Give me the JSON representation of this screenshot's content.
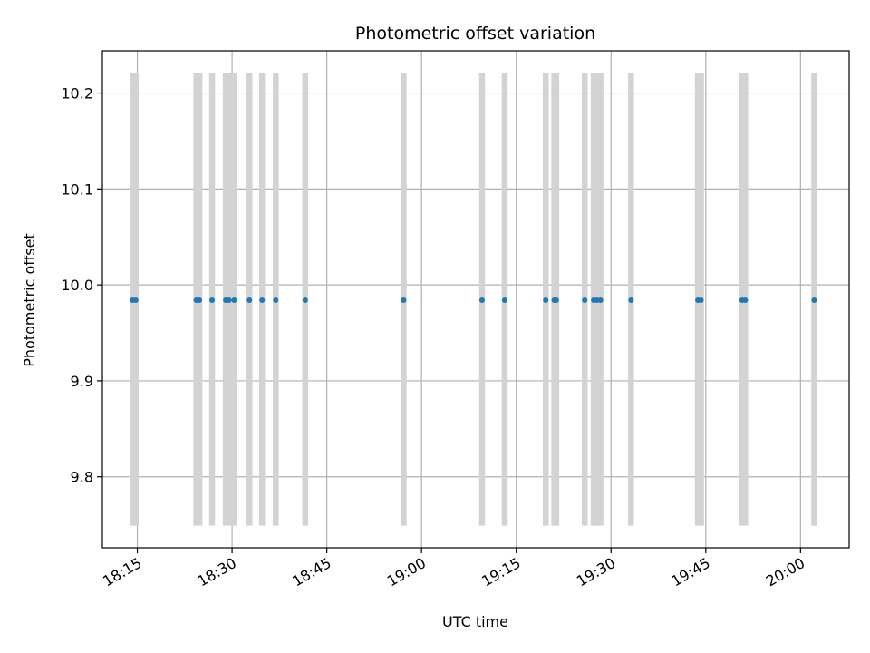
{
  "chart_data": {
    "type": "scatter",
    "title": "Photometric offset variation",
    "xlabel": "UTC time",
    "ylabel": "Photometric offset",
    "x_tick_labels": [
      "18:15",
      "18:30",
      "18:45",
      "19:00",
      "19:15",
      "19:30",
      "19:45",
      "20:00"
    ],
    "y_tick_labels": [
      "9.8",
      "9.9",
      "10.0",
      "10.1",
      "10.2"
    ],
    "y_ticks": [
      9.8,
      9.9,
      10.0,
      10.1,
      10.2
    ],
    "xlim": [
      "18:09:28",
      "20:07:42"
    ],
    "ylim": [
      9.726,
      10.244
    ],
    "grid": true,
    "error_band": [
      9.749,
      10.221
    ],
    "marker_color": "#1f77b4",
    "errorbar_color": "#d3d3d3",
    "points": [
      {
        "x": "18:14:15",
        "y": 9.984
      },
      {
        "x": "18:14:45",
        "y": 9.984
      },
      {
        "x": "18:24:20",
        "y": 9.984
      },
      {
        "x": "18:24:50",
        "y": 9.984
      },
      {
        "x": "18:26:50",
        "y": 9.984
      },
      {
        "x": "18:29:00",
        "y": 9.984
      },
      {
        "x": "18:29:30",
        "y": 9.984
      },
      {
        "x": "18:30:20",
        "y": 9.984
      },
      {
        "x": "18:32:45",
        "y": 9.984
      },
      {
        "x": "18:34:45",
        "y": 9.984
      },
      {
        "x": "18:36:55",
        "y": 9.984
      },
      {
        "x": "18:41:35",
        "y": 9.984
      },
      {
        "x": "18:57:10",
        "y": 9.984
      },
      {
        "x": "19:09:35",
        "y": 9.984
      },
      {
        "x": "19:13:10",
        "y": 9.984
      },
      {
        "x": "19:19:40",
        "y": 9.984
      },
      {
        "x": "19:21:00",
        "y": 9.984
      },
      {
        "x": "19:21:20",
        "y": 9.984
      },
      {
        "x": "19:25:50",
        "y": 9.984
      },
      {
        "x": "19:27:15",
        "y": 9.984
      },
      {
        "x": "19:27:45",
        "y": 9.984
      },
      {
        "x": "19:28:20",
        "y": 9.984
      },
      {
        "x": "19:33:10",
        "y": 9.984
      },
      {
        "x": "19:43:45",
        "y": 9.984
      },
      {
        "x": "19:44:15",
        "y": 9.984
      },
      {
        "x": "19:50:45",
        "y": 9.984
      },
      {
        "x": "19:51:15",
        "y": 9.984
      },
      {
        "x": "20:02:10",
        "y": 9.984
      }
    ]
  }
}
